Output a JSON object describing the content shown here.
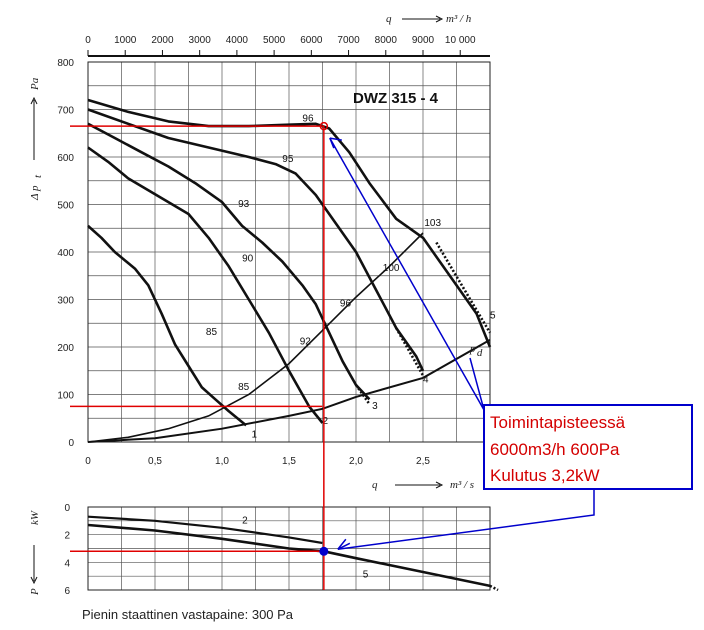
{
  "chart_data": {
    "type": "line",
    "title": "DWZ 315 - 4",
    "top_chart": {
      "x_top": {
        "label_q": "q",
        "label_unit": "m³ / h",
        "ticks": [
          "0",
          "1000",
          "2000",
          "3000",
          "4000",
          "5000",
          "6000",
          "7000",
          "8000",
          "9000",
          "10 000"
        ]
      },
      "x_bottom": {
        "label_q": "q",
        "label_unit": "m³ / s",
        "ticks": [
          "0",
          "0,5",
          "1,0",
          "1,5",
          "2,0",
          "2,5",
          "3,"
        ],
        "xlim": [
          0,
          3
        ]
      },
      "y": {
        "label_p": "Δ p",
        "label_sub": "t",
        "unit": "Pa",
        "ticks": [
          "0",
          "100",
          "200",
          "300",
          "400",
          "500",
          "600",
          "700",
          "800"
        ],
        "ylim": [
          0,
          800
        ]
      },
      "curves": [
        {
          "name": "1",
          "x": [
            0.0,
            0.1,
            0.2,
            0.35,
            0.45,
            0.55,
            0.65,
            0.75,
            0.85,
            0.95,
            1.05,
            1.18
          ],
          "y": [
            455,
            430,
            400,
            365,
            330,
            270,
            205,
            160,
            115,
            90,
            65,
            35
          ]
        },
        {
          "name": "2",
          "x": [
            0.0,
            0.15,
            0.3,
            0.45,
            0.6,
            0.75,
            0.9,
            1.05,
            1.2,
            1.35,
            1.5,
            1.65,
            1.75
          ],
          "y": [
            620,
            590,
            555,
            530,
            505,
            480,
            430,
            370,
            300,
            230,
            150,
            75,
            40
          ]
        },
        {
          "name": "3",
          "x": [
            0.0,
            0.2,
            0.4,
            0.6,
            0.8,
            1.0,
            1.15,
            1.3,
            1.45,
            1.6,
            1.7,
            1.8,
            1.9,
            2.0,
            2.1
          ],
          "y": [
            670,
            640,
            610,
            580,
            545,
            505,
            455,
            420,
            380,
            330,
            290,
            230,
            170,
            120,
            90
          ]
        },
        {
          "name": "4",
          "x": [
            0.0,
            0.3,
            0.6,
            0.9,
            1.2,
            1.4,
            1.55,
            1.7,
            1.85,
            2.0,
            2.15,
            2.3,
            2.45,
            2.5
          ],
          "y": [
            700,
            670,
            640,
            620,
            600,
            585,
            565,
            520,
            460,
            400,
            320,
            240,
            180,
            150
          ]
        },
        {
          "name": "5",
          "x": [
            0.0,
            0.3,
            0.6,
            0.9,
            1.2,
            1.5,
            1.7,
            1.8,
            1.95,
            2.1,
            2.3,
            2.5,
            2.7,
            2.9,
            3.0
          ],
          "y": [
            720,
            695,
            675,
            665,
            665,
            668,
            670,
            660,
            610,
            545,
            470,
            430,
            350,
            270,
            200
          ]
        }
      ],
      "efficiency_labels": [
        {
          "text": "96",
          "x": 1.6,
          "y": 675
        },
        {
          "text": "95",
          "x": 1.45,
          "y": 590
        },
        {
          "text": "93",
          "x": 1.12,
          "y": 495
        },
        {
          "text": "90",
          "x": 1.15,
          "y": 380
        },
        {
          "text": "85",
          "x": 0.88,
          "y": 225
        },
        {
          "text": "85",
          "x": 1.12,
          "y": 110
        },
        {
          "text": "92",
          "x": 1.58,
          "y": 205
        },
        {
          "text": "96",
          "x": 1.88,
          "y": 285
        },
        {
          "text": "100",
          "x": 2.2,
          "y": 360
        },
        {
          "text": "103",
          "x": 2.51,
          "y": 455
        }
      ],
      "pd_label": {
        "text": "p",
        "sub": "d",
        "x": 2.85,
        "y": 190
      },
      "curve_end_labels": [
        {
          "text": "1",
          "x": 1.22,
          "y": 10
        },
        {
          "text": "2",
          "x": 1.75,
          "y": 38
        },
        {
          "text": "3",
          "x": 2.12,
          "y": 70
        },
        {
          "text": "4",
          "x": 2.5,
          "y": 125
        },
        {
          "text": "5",
          "x": 3.0,
          "y": 260
        }
      ],
      "system_curve": {
        "x": [
          0.0,
          0.3,
          0.6,
          0.9,
          1.2,
          1.5,
          1.75,
          2.0,
          2.25,
          2.5
        ],
        "y": [
          0,
          10,
          28,
          55,
          100,
          165,
          235,
          305,
          370,
          440
        ]
      },
      "pd_curve": {
        "x": [
          0.0,
          0.5,
          1.0,
          1.5,
          1.75,
          2.0,
          2.5,
          3.0
        ],
        "y": [
          0,
          8,
          28,
          55,
          70,
          95,
          135,
          215
        ]
      },
      "operating_point": {
        "x": 1.76,
        "y": 665
      }
    },
    "bottom_chart": {
      "y": {
        "label": "P",
        "unit": "kW",
        "ticks": [
          "0",
          "2",
          "4",
          "6"
        ],
        "ylim": [
          0,
          6
        ]
      },
      "curves": [
        {
          "name": "2",
          "x": [
            0.0,
            0.5,
            1.0,
            1.5,
            1.75
          ],
          "y": [
            0.7,
            1.0,
            1.5,
            2.2,
            2.6
          ]
        },
        {
          "name": "5",
          "x": [
            0.0,
            0.5,
            1.0,
            1.5,
            1.76,
            2.0,
            2.5,
            3.0
          ],
          "y": [
            1.3,
            1.7,
            2.3,
            3.0,
            3.2,
            3.7,
            4.7,
            5.7
          ]
        }
      ],
      "operating_point": {
        "x": 1.76,
        "y": 3.2
      }
    },
    "callout": {
      "lines": [
        "Toimintapisteessä",
        "6000m3/h  600Pa",
        "Kulutus 3,2kW"
      ],
      "color": "#d40000",
      "border_color": "#0000cc"
    },
    "annotation_color": "#e00000",
    "arrow_color": "#0000cc",
    "note": "Pienin staattinen vastapaine:  300 Pa"
  }
}
